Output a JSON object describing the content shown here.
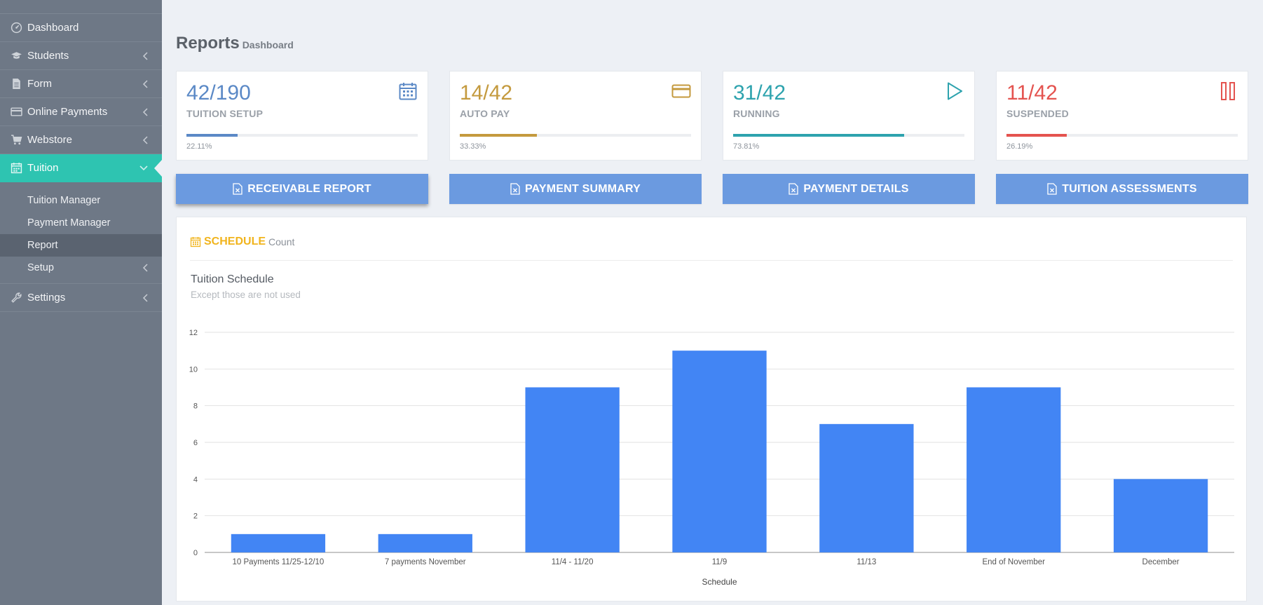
{
  "sidebar": {
    "items": [
      {
        "label": "Dashboard",
        "icon": "dashboard-icon",
        "chevron": false
      },
      {
        "label": "Students",
        "icon": "graduation-cap-icon",
        "chevron": true
      },
      {
        "label": "Form",
        "icon": "document-icon",
        "chevron": true
      },
      {
        "label": "Online Payments",
        "icon": "credit-card-icon",
        "chevron": true
      },
      {
        "label": "Webstore",
        "icon": "cart-icon",
        "chevron": true
      },
      {
        "label": "Tuition",
        "icon": "calendar-icon",
        "chevron": true,
        "active": true
      }
    ],
    "subitems": [
      {
        "label": "Tuition Manager"
      },
      {
        "label": "Payment Manager"
      },
      {
        "label": "Report",
        "current": true
      },
      {
        "label": "Setup",
        "chevron": true
      }
    ],
    "settings": {
      "label": "Settings",
      "icon": "wrench-icon"
    }
  },
  "header": {
    "title": "Reports",
    "subtitle": "Dashboard"
  },
  "stats": [
    {
      "value": "42/190",
      "label": "TUITION SETUP",
      "percent": "22.11%",
      "progress": 22.11,
      "color": "#5b89c6",
      "icon": "calendar-icon"
    },
    {
      "value": "14/42",
      "label": "AUTO PAY",
      "percent": "33.33%",
      "progress": 33.33,
      "color": "#c49a3e",
      "icon": "credit-card-icon"
    },
    {
      "value": "31/42",
      "label": "RUNNING",
      "percent": "73.81%",
      "progress": 73.81,
      "color": "#2ea3ae",
      "icon": "play-icon"
    },
    {
      "value": "11/42",
      "label": "SUSPENDED",
      "percent": "26.19%",
      "progress": 26.19,
      "color": "#e4534f",
      "icon": "pause-icon"
    }
  ],
  "buttons": [
    {
      "label": "RECEIVABLE REPORT"
    },
    {
      "label": "PAYMENT SUMMARY"
    },
    {
      "label": "PAYMENT DETAILS"
    },
    {
      "label": "TUITION ASSESSMENTS"
    }
  ],
  "panel": {
    "title": "SCHEDULE",
    "subtitle": "Count"
  },
  "chart_data": {
    "type": "bar",
    "title": "Tuition Schedule",
    "subtitle": "Except those are not used",
    "categories": [
      "10 Payments 11/25-12/10",
      "7 payments November",
      "11/4 - 11/20",
      "11/9",
      "11/13",
      "End of November",
      "December"
    ],
    "values": [
      1,
      1,
      9,
      11,
      7,
      9,
      4
    ],
    "xlabel": "Schedule",
    "ylabel": "",
    "ylim": [
      0,
      12
    ],
    "yticks": [
      0,
      2,
      4,
      6,
      8,
      10,
      12
    ],
    "grid": true,
    "bar_color": "#4285f4"
  }
}
